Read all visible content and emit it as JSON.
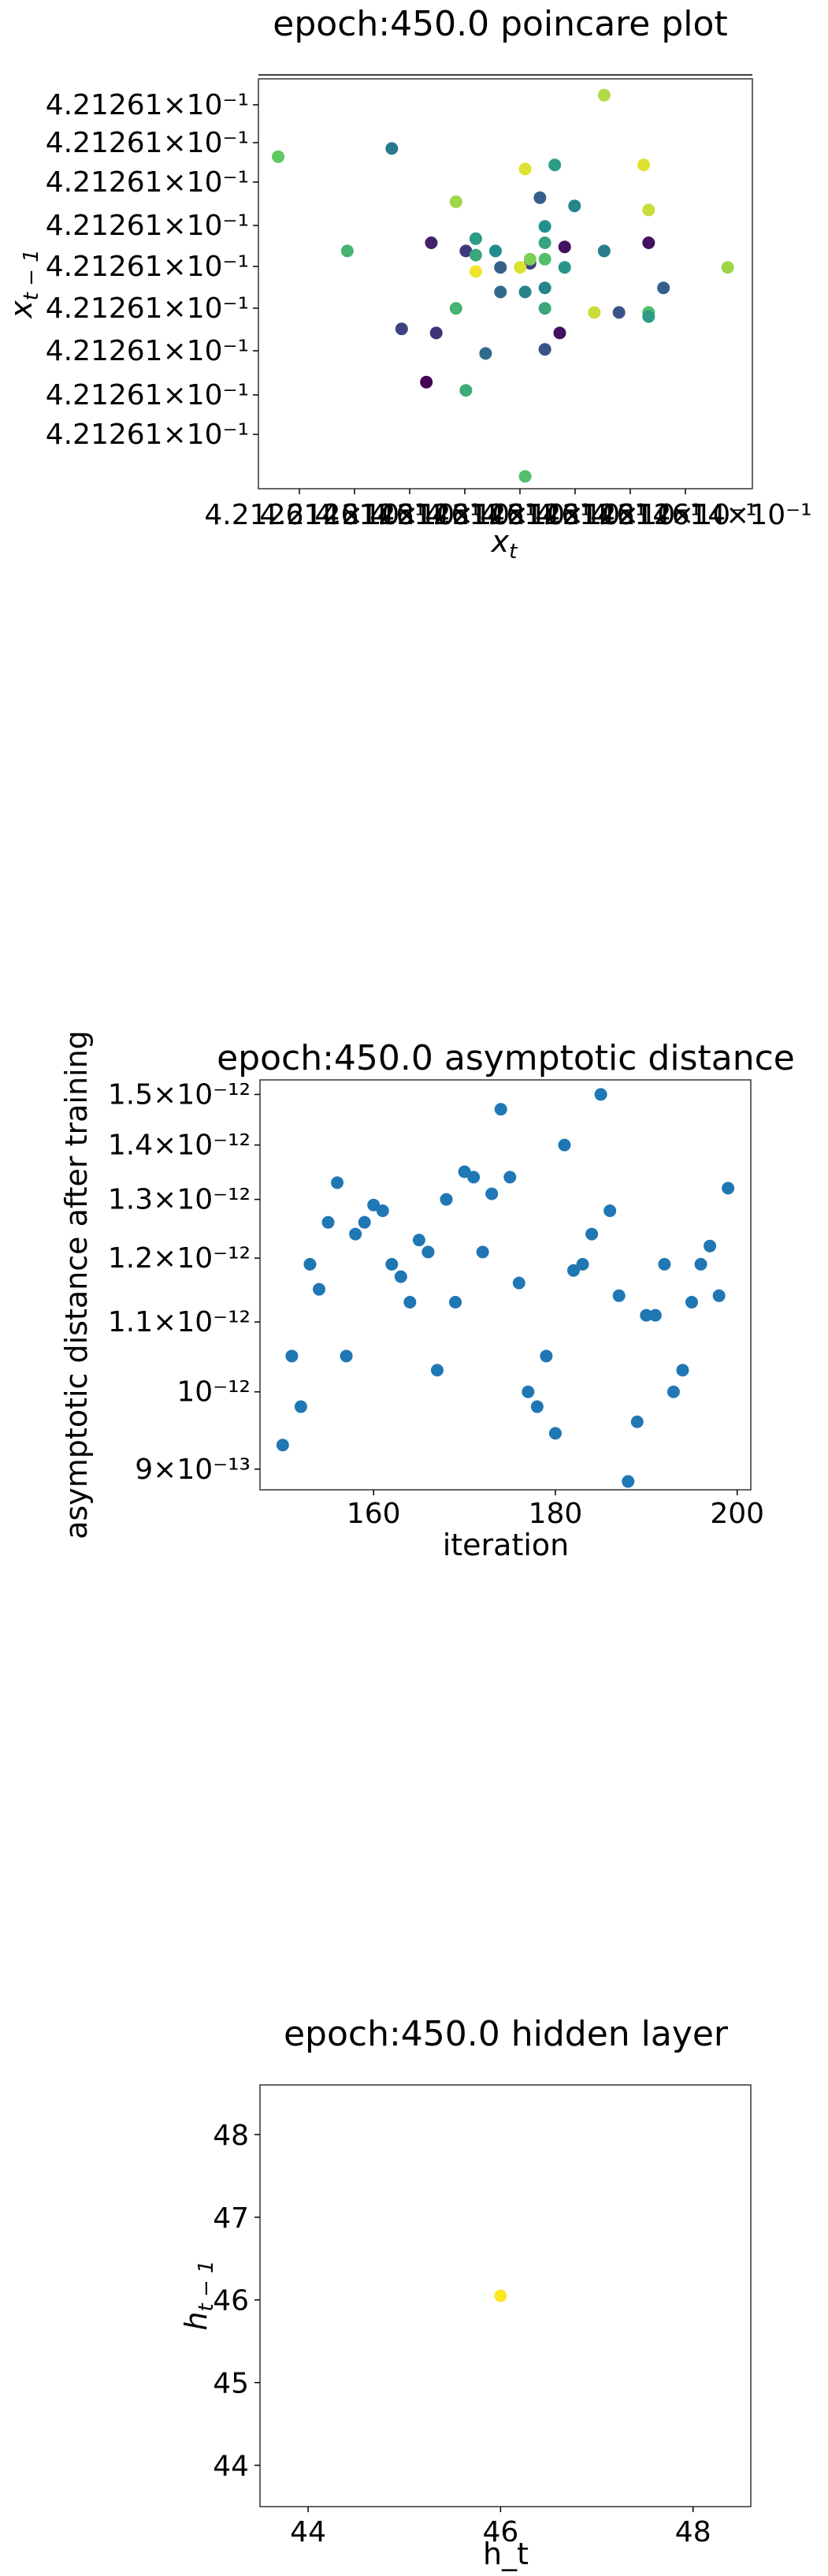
{
  "chart_data": [
    {
      "type": "scatter",
      "title": "epoch:450.0 poincare plot",
      "xlabel": "x_t",
      "ylabel": "x_t-1",
      "ylim": [
        0,
        10
      ],
      "xlim": [
        0,
        10
      ],
      "yticks": [
        "4.21261×10⁻¹",
        "4.21261×10⁻¹",
        "4.21261×10⁻¹",
        "4.21261×10⁻¹",
        "4.21261×10⁻¹",
        "4.21261×10⁻¹",
        "4.21261×10⁻¹",
        "4.21261×10⁻¹",
        "4.21261×10⁻¹"
      ],
      "xtick_text": "4.212614×10⁻¹",
      "color_scale": "viridis",
      "points": [
        {
          "x": 0.4,
          "y": 8.1,
          "c": 0.75
        },
        {
          "x": 2.7,
          "y": 8.3,
          "c": 0.4
        },
        {
          "x": 7.0,
          "y": 9.6,
          "c": 0.88
        },
        {
          "x": 5.4,
          "y": 7.8,
          "c": 0.95
        },
        {
          "x": 6.0,
          "y": 7.9,
          "c": 0.55
        },
        {
          "x": 7.8,
          "y": 7.9,
          "c": 0.95
        },
        {
          "x": 4.0,
          "y": 7.0,
          "c": 0.85
        },
        {
          "x": 5.7,
          "y": 7.1,
          "c": 0.3
        },
        {
          "x": 6.4,
          "y": 6.9,
          "c": 0.45
        },
        {
          "x": 5.8,
          "y": 6.4,
          "c": 0.5
        },
        {
          "x": 7.9,
          "y": 6.8,
          "c": 0.92
        },
        {
          "x": 1.8,
          "y": 5.8,
          "c": 0.65
        },
        {
          "x": 3.5,
          "y": 6.0,
          "c": 0.1
        },
        {
          "x": 4.2,
          "y": 5.8,
          "c": 0.18
        },
        {
          "x": 4.4,
          "y": 6.1,
          "c": 0.55
        },
        {
          "x": 4.8,
          "y": 5.8,
          "c": 0.48
        },
        {
          "x": 5.8,
          "y": 6.0,
          "c": 0.58
        },
        {
          "x": 6.2,
          "y": 5.9,
          "c": 0.05
        },
        {
          "x": 7.0,
          "y": 5.8,
          "c": 0.42
        },
        {
          "x": 7.9,
          "y": 6.0,
          "c": 0.05
        },
        {
          "x": 4.4,
          "y": 5.7,
          "c": 0.6
        },
        {
          "x": 4.9,
          "y": 5.4,
          "c": 0.3
        },
        {
          "x": 5.5,
          "y": 5.5,
          "c": 0.2
        },
        {
          "x": 5.8,
          "y": 5.6,
          "c": 0.7
        },
        {
          "x": 5.3,
          "y": 5.4,
          "c": 0.95
        },
        {
          "x": 5.5,
          "y": 5.6,
          "c": 0.8
        },
        {
          "x": 4.4,
          "y": 5.3,
          "c": 0.98
        },
        {
          "x": 6.2,
          "y": 5.4,
          "c": 0.52
        },
        {
          "x": 9.5,
          "y": 5.4,
          "c": 0.85
        },
        {
          "x": 8.2,
          "y": 4.9,
          "c": 0.3
        },
        {
          "x": 4.9,
          "y": 4.8,
          "c": 0.35
        },
        {
          "x": 5.4,
          "y": 4.8,
          "c": 0.45
        },
        {
          "x": 5.8,
          "y": 4.9,
          "c": 0.45
        },
        {
          "x": 4.0,
          "y": 4.4,
          "c": 0.65
        },
        {
          "x": 5.8,
          "y": 4.4,
          "c": 0.6
        },
        {
          "x": 6.8,
          "y": 4.3,
          "c": 0.92
        },
        {
          "x": 7.3,
          "y": 4.3,
          "c": 0.25
        },
        {
          "x": 7.9,
          "y": 4.3,
          "c": 0.7
        },
        {
          "x": 7.9,
          "y": 4.2,
          "c": 0.55
        },
        {
          "x": 2.9,
          "y": 3.9,
          "c": 0.2
        },
        {
          "x": 3.6,
          "y": 3.8,
          "c": 0.15
        },
        {
          "x": 6.1,
          "y": 3.8,
          "c": 0.05
        },
        {
          "x": 4.6,
          "y": 3.3,
          "c": 0.35
        },
        {
          "x": 5.8,
          "y": 3.4,
          "c": 0.25
        },
        {
          "x": 3.4,
          "y": 2.6,
          "c": 0.0
        },
        {
          "x": 4.2,
          "y": 2.4,
          "c": 0.62
        },
        {
          "x": 5.4,
          "y": 0.3,
          "c": 0.7
        }
      ]
    },
    {
      "type": "scatter",
      "title": "epoch:450.0 asymptotic distance",
      "xlabel": "iteration",
      "ylabel": "asymptotic distance after training",
      "xlim": [
        147.5,
        201.5
      ],
      "yscale": "log",
      "ylim": [
        8.75e-13,
        1.53e-12
      ],
      "xticks": [
        160,
        180,
        200
      ],
      "xtick_labels": [
        "160",
        "180",
        "200"
      ],
      "yticks": [
        9e-13,
        1e-12,
        1.1e-12,
        1.2e-12,
        1.3e-12,
        1.4e-12,
        1.5e-12
      ],
      "ytick_labels": [
        "9×10⁻¹³",
        "10⁻¹²",
        "1.1×10⁻¹²",
        "1.2×10⁻¹²",
        "1.3×10⁻¹²",
        "1.4×10⁻¹²",
        "1.5×10⁻¹²"
      ],
      "x": [
        150,
        151,
        152,
        153,
        154,
        155,
        156,
        157,
        158,
        159,
        160,
        161,
        162,
        163,
        164,
        165,
        166,
        167,
        168,
        169,
        170,
        171,
        172,
        173,
        174,
        175,
        176,
        177,
        178,
        179,
        180,
        181,
        182,
        183,
        184,
        185,
        186,
        187,
        188,
        189,
        190,
        191,
        192,
        193,
        194,
        195,
        196,
        197,
        198,
        199
      ],
      "y": [
        9.3e-13,
        1.05e-12,
        9.8e-13,
        1.19e-12,
        1.15e-12,
        1.26e-12,
        1.33e-12,
        1.05e-12,
        1.24e-12,
        1.26e-12,
        1.29e-12,
        1.28e-12,
        1.19e-12,
        1.17e-12,
        1.13e-12,
        1.23e-12,
        1.21e-12,
        1.03e-12,
        1.3e-12,
        1.13e-12,
        1.35e-12,
        1.34e-12,
        1.21e-12,
        1.31e-12,
        1.47e-12,
        1.34e-12,
        1.16e-12,
        1e-12,
        9.8e-13,
        1.05e-12,
        9.45e-13,
        1.4e-12,
        1.18e-12,
        1.19e-12,
        1.24e-12,
        1.5e-12,
        1.28e-12,
        1.14e-12,
        8.85e-13,
        9.6e-13,
        1.11e-12,
        1.11e-12,
        1.19e-12,
        1e-12,
        1.03e-12,
        1.13e-12,
        1.19e-12,
        1.22e-12,
        1.14e-12,
        1.32e-12
      ],
      "color": "#1f77b4"
    },
    {
      "type": "scatter",
      "title": "epoch:450.0 hidden layer",
      "xlabel": "h_t",
      "ylabel": "h_t-1",
      "xlim": [
        43.5,
        48.6
      ],
      "ylim": [
        43.5,
        48.6
      ],
      "xticks": [
        44,
        46,
        48
      ],
      "yticks": [
        44,
        45,
        46,
        47,
        48
      ],
      "points": [
        {
          "x": 46.0,
          "y": 46.05,
          "color": "#fde725"
        }
      ]
    }
  ]
}
